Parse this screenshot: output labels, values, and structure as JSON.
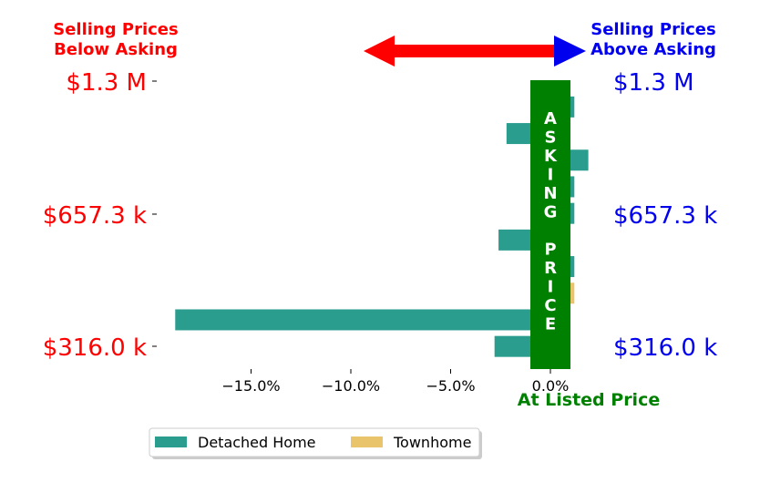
{
  "colors": {
    "detached": "#2a9d8f",
    "townhome": "#e9c46a",
    "below": "#ff0000",
    "above": "#0000ee",
    "asking_band": "#008000"
  },
  "headers": {
    "left_line1": "Selling Prices",
    "left_line2": "Below Asking",
    "right_line1": "Selling Prices",
    "right_line2": "Above Asking"
  },
  "price_labels": [
    "$1.3 M",
    "$657.3 k",
    "$316.0 k"
  ],
  "asking_band": {
    "letters": [
      "A",
      "S",
      "K",
      "I",
      "N",
      "G",
      "",
      "P",
      "R",
      "I",
      "C",
      "E"
    ]
  },
  "chart_data": {
    "type": "bar",
    "orientation": "horizontal",
    "xlabel": "At Listed Price",
    "xlim": [
      -20,
      2.5
    ],
    "xticks": [
      -15,
      -10,
      -5,
      0
    ],
    "xtick_labels": [
      "−15.0%",
      "−10.0%",
      "−5.0%",
      "0.0%"
    ],
    "series": [
      {
        "name": "Detached Home",
        "color": "#2a9d8f",
        "bars": [
          {
            "row": 0.8,
            "value": 1.2
          },
          {
            "row": 1.8,
            "value": -2.2
          },
          {
            "row": 2.8,
            "value": 1.9
          },
          {
            "row": 3.8,
            "value": 1.2
          },
          {
            "row": 4.8,
            "value": 1.2
          },
          {
            "row": 5.8,
            "value": -2.6
          },
          {
            "row": 6.8,
            "value": 1.2
          },
          {
            "row": 8.8,
            "value": -18.8
          },
          {
            "row": 9.8,
            "value": -2.8
          }
        ]
      },
      {
        "name": "Townhome",
        "color": "#e9c46a",
        "bars": [
          {
            "row": 7.8,
            "value": 1.2
          }
        ]
      }
    ],
    "legend": {
      "placement": "bottom-left",
      "entries": [
        "Detached Home",
        "Townhome"
      ]
    }
  }
}
